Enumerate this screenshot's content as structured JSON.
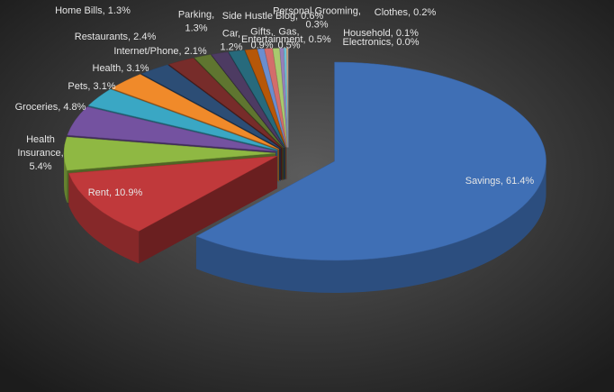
{
  "chart_data": {
    "type": "pie3d",
    "values": [
      61.4,
      10.9,
      5.4,
      4.8,
      3.1,
      3.1,
      2.4,
      2.1,
      1.3,
      1.3,
      1.2,
      0.9,
      0.5,
      0.6,
      0.5,
      0.3,
      0.2,
      0.1,
      0.0
    ],
    "value_labels": [
      "Savings, 61.4%",
      "Rent, 10.9%",
      "Health Insurance, 5.4%",
      "Groceries, 4.8%",
      "Pets, 3.1%",
      "Health, 3.1%",
      "Restaurants, 2.4%",
      "Internet/Phone, 2.1%",
      "Home Bills, 1.3%",
      "Parking, 1.3%",
      "Car, 1.2%",
      "Gifts, 0.9%",
      "Gas, 0.5%",
      "Side Hustle Blog, 0.6%",
      "Entertainment, 0.5%",
      "Personal Grooming, 0.3%",
      "Clothes, 0.2%",
      "Household, 0.1%",
      "Electronics, 0.0%"
    ],
    "colors": [
      "#3f6fb5",
      "#c0393b",
      "#8fb843",
      "#7452a0",
      "#3aa7c4",
      "#f08a2a",
      "#2c4d75",
      "#772c2a",
      "#5f7530",
      "#4d3b62",
      "#276a7c",
      "#b65708",
      "#6a8ecf",
      "#d36d6b",
      "#a9c96e",
      "#9680b9",
      "#6bc0d6",
      "#f7b16e",
      "#8aa2c8"
    ]
  }
}
